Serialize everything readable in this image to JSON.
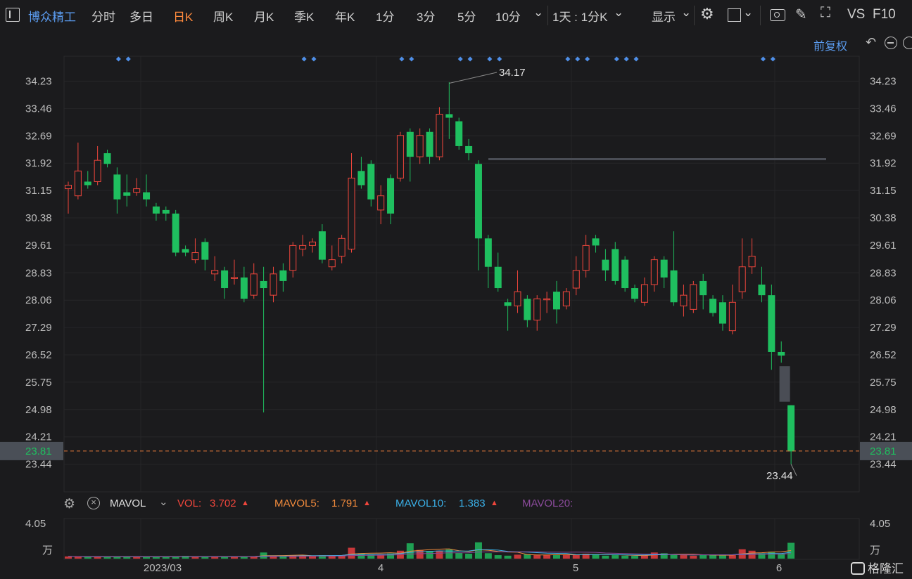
{
  "toolbar": {
    "stock_name": "博众精工",
    "tabs": [
      "分时",
      "多日",
      "日K",
      "周K",
      "月K",
      "季K",
      "年K",
      "1分",
      "3分",
      "5分",
      "10分"
    ],
    "active_tab": "日K",
    "range_select": "1天 : 1分K",
    "display_label": "显示",
    "vs_label": "VS",
    "f10_label": "F10"
  },
  "subbar": {
    "adjust_label": "前复权"
  },
  "price_axis": {
    "ticks": [
      "34.23",
      "33.46",
      "32.69",
      "31.92",
      "31.15",
      "30.38",
      "29.61",
      "28.83",
      "28.06",
      "27.29",
      "26.52",
      "25.75",
      "24.98",
      "24.21",
      "23.44"
    ],
    "current": "23.81"
  },
  "annotations": {
    "high": "34.17",
    "low": "23.44"
  },
  "date_axis": [
    "2023/03",
    "4",
    "5",
    "6"
  ],
  "indicator": {
    "name": "MAVOL",
    "vol_label": "VOL:",
    "vol_value": "3.702",
    "ma5_label": "MAVOL5:",
    "ma5_value": "1.791",
    "ma10_label": "MAVOL10:",
    "ma10_value": "1.383",
    "ma20_label": "MAVOL20:"
  },
  "volume_axis": {
    "top": "4.05",
    "unit": "万"
  },
  "watermark": "格隆汇",
  "colors": {
    "up": "#f0463c",
    "down": "#1fbf5f",
    "bg": "#1b1b1d",
    "accent": "#ff8a3d",
    "name": "#5b9cf0"
  },
  "chart_data": {
    "type": "candlestick",
    "ylim": [
      23.2,
      34.6
    ],
    "candles": [
      {
        "o": 31.2,
        "c": 31.3,
        "h": 31.4,
        "l": 30.5
      },
      {
        "o": 31.0,
        "c": 31.7,
        "h": 32.5,
        "l": 30.9
      },
      {
        "o": 31.4,
        "c": 31.3,
        "h": 31.7,
        "l": 31.2
      },
      {
        "o": 31.4,
        "c": 32.0,
        "h": 32.4,
        "l": 31.3
      },
      {
        "o": 32.2,
        "c": 31.9,
        "h": 32.3,
        "l": 31.8
      },
      {
        "o": 31.6,
        "c": 30.9,
        "h": 31.8,
        "l": 30.5
      },
      {
        "o": 31.1,
        "c": 31.0,
        "h": 31.6,
        "l": 30.7
      },
      {
        "o": 31.1,
        "c": 31.2,
        "h": 31.5,
        "l": 31.0
      },
      {
        "o": 31.1,
        "c": 30.9,
        "h": 31.6,
        "l": 30.7
      },
      {
        "o": 30.7,
        "c": 30.5,
        "h": 30.8,
        "l": 30.3
      },
      {
        "o": 30.6,
        "c": 30.5,
        "h": 30.7,
        "l": 30.3
      },
      {
        "o": 30.5,
        "c": 29.4,
        "h": 30.6,
        "l": 29.3
      },
      {
        "o": 29.5,
        "c": 29.4,
        "h": 29.6,
        "l": 29.3
      },
      {
        "o": 29.2,
        "c": 29.4,
        "h": 29.8,
        "l": 29.1
      },
      {
        "o": 29.7,
        "c": 29.2,
        "h": 29.8,
        "l": 28.9
      },
      {
        "o": 28.8,
        "c": 28.9,
        "h": 29.3,
        "l": 28.6
      },
      {
        "o": 28.9,
        "c": 28.4,
        "h": 29.0,
        "l": 28.1
      },
      {
        "o": 28.7,
        "c": 28.7,
        "h": 29.2,
        "l": 28.5
      },
      {
        "o": 28.7,
        "c": 28.1,
        "h": 29.0,
        "l": 28.0
      },
      {
        "o": 28.2,
        "c": 28.8,
        "h": 29.1,
        "l": 28.1
      },
      {
        "o": 28.6,
        "c": 28.4,
        "h": 29.0,
        "l": 24.9
      },
      {
        "o": 28.2,
        "c": 28.8,
        "h": 29.0,
        "l": 28.0
      },
      {
        "o": 28.9,
        "c": 28.6,
        "h": 29.1,
        "l": 28.3
      },
      {
        "o": 28.9,
        "c": 29.6,
        "h": 29.7,
        "l": 28.7
      },
      {
        "o": 29.5,
        "c": 29.6,
        "h": 29.9,
        "l": 29.3
      },
      {
        "o": 29.6,
        "c": 29.7,
        "h": 29.8,
        "l": 29.4
      },
      {
        "o": 30.0,
        "c": 29.2,
        "h": 30.2,
        "l": 29.1
      },
      {
        "o": 29.0,
        "c": 29.2,
        "h": 29.6,
        "l": 28.9
      },
      {
        "o": 29.3,
        "c": 29.8,
        "h": 29.9,
        "l": 29.1
      },
      {
        "o": 29.5,
        "c": 31.5,
        "h": 32.2,
        "l": 29.4
      },
      {
        "o": 31.7,
        "c": 31.3,
        "h": 32.1,
        "l": 31.2
      },
      {
        "o": 31.9,
        "c": 30.9,
        "h": 32.0,
        "l": 30.7
      },
      {
        "o": 30.6,
        "c": 31.0,
        "h": 31.3,
        "l": 30.2
      },
      {
        "o": 31.5,
        "c": 30.5,
        "h": 31.6,
        "l": 30.2
      },
      {
        "o": 31.5,
        "c": 32.7,
        "h": 32.8,
        "l": 31.4
      },
      {
        "o": 32.8,
        "c": 32.1,
        "h": 32.9,
        "l": 31.4
      },
      {
        "o": 32.1,
        "c": 32.7,
        "h": 32.9,
        "l": 31.9
      },
      {
        "o": 32.8,
        "c": 32.1,
        "h": 32.9,
        "l": 31.9
      },
      {
        "o": 32.1,
        "c": 33.3,
        "h": 33.5,
        "l": 32.0
      },
      {
        "o": 33.3,
        "c": 33.2,
        "h": 34.2,
        "l": 32.6
      },
      {
        "o": 33.1,
        "c": 32.4,
        "h": 33.2,
        "l": 32.3
      },
      {
        "o": 32.4,
        "c": 32.2,
        "h": 32.6,
        "l": 32.0
      },
      {
        "o": 31.9,
        "c": 29.8,
        "h": 32.0,
        "l": 28.9
      },
      {
        "o": 29.8,
        "c": 29.0,
        "h": 29.9,
        "l": 28.4
      },
      {
        "o": 29.0,
        "c": 28.4,
        "h": 29.4,
        "l": 28.3
      },
      {
        "o": 28.0,
        "c": 27.9,
        "h": 28.1,
        "l": 27.2
      },
      {
        "o": 27.9,
        "c": 28.3,
        "h": 28.9,
        "l": 27.7
      },
      {
        "o": 28.1,
        "c": 27.5,
        "h": 28.2,
        "l": 27.3
      },
      {
        "o": 27.5,
        "c": 28.1,
        "h": 28.2,
        "l": 27.2
      },
      {
        "o": 28.1,
        "c": 28.1,
        "h": 28.3,
        "l": 27.7
      },
      {
        "o": 28.3,
        "c": 27.8,
        "h": 28.6,
        "l": 27.4
      },
      {
        "o": 27.9,
        "c": 28.3,
        "h": 28.4,
        "l": 27.8
      },
      {
        "o": 28.4,
        "c": 28.9,
        "h": 29.3,
        "l": 28.2
      },
      {
        "o": 28.9,
        "c": 29.6,
        "h": 29.9,
        "l": 28.7
      },
      {
        "o": 29.8,
        "c": 29.6,
        "h": 29.9,
        "l": 29.4
      },
      {
        "o": 29.2,
        "c": 28.9,
        "h": 29.5,
        "l": 28.6
      },
      {
        "o": 29.5,
        "c": 28.6,
        "h": 29.7,
        "l": 28.5
      },
      {
        "o": 29.2,
        "c": 28.4,
        "h": 29.3,
        "l": 28.3
      },
      {
        "o": 28.4,
        "c": 28.1,
        "h": 28.5,
        "l": 28.0
      },
      {
        "o": 28.0,
        "c": 28.5,
        "h": 28.7,
        "l": 27.9
      },
      {
        "o": 28.5,
        "c": 29.2,
        "h": 29.3,
        "l": 28.3
      },
      {
        "o": 29.2,
        "c": 28.7,
        "h": 29.3,
        "l": 28.4
      },
      {
        "o": 28.9,
        "c": 28.0,
        "h": 30.0,
        "l": 27.9
      },
      {
        "o": 27.9,
        "c": 28.2,
        "h": 28.5,
        "l": 27.6
      },
      {
        "o": 27.8,
        "c": 28.5,
        "h": 28.6,
        "l": 27.7
      },
      {
        "o": 28.6,
        "c": 28.2,
        "h": 28.8,
        "l": 27.8
      },
      {
        "o": 28.1,
        "c": 27.7,
        "h": 28.2,
        "l": 27.6
      },
      {
        "o": 28.0,
        "c": 27.4,
        "h": 28.2,
        "l": 27.2
      },
      {
        "o": 27.2,
        "c": 28.0,
        "h": 28.5,
        "l": 27.1
      },
      {
        "o": 28.3,
        "c": 29.0,
        "h": 29.8,
        "l": 28.1
      },
      {
        "o": 29.0,
        "c": 29.3,
        "h": 29.8,
        "l": 28.8
      },
      {
        "o": 28.5,
        "c": 28.2,
        "h": 29.0,
        "l": 28.0
      },
      {
        "o": 28.2,
        "c": 26.6,
        "h": 28.5,
        "l": 26.1
      },
      {
        "o": 26.6,
        "c": 26.5,
        "h": 26.9,
        "l": 26.3
      },
      {
        "o": 25.1,
        "c": 23.8,
        "h": 25.1,
        "l": 23.44
      }
    ],
    "volume": [
      0.22,
      0.2,
      0.18,
      0.2,
      0.16,
      0.2,
      0.24,
      0.18,
      0.2,
      0.16,
      0.18,
      0.24,
      0.28,
      0.18,
      0.2,
      0.18,
      0.22,
      0.2,
      0.24,
      0.18,
      0.62,
      0.3,
      0.24,
      0.35,
      0.3,
      0.25,
      0.35,
      0.3,
      0.35,
      1.1,
      0.52,
      0.45,
      0.4,
      0.52,
      0.8,
      1.55,
      0.88,
      0.78,
      0.8,
      0.92,
      0.6,
      0.5,
      1.65,
      0.55,
      0.35,
      0.3,
      0.4,
      0.45,
      0.35,
      0.38,
      0.42,
      0.4,
      0.42,
      0.5,
      0.4,
      0.3,
      0.35,
      0.3,
      0.28,
      0.32,
      0.62,
      0.55,
      0.4,
      0.35,
      0.3,
      0.35,
      0.4,
      0.35,
      0.35,
      0.95,
      0.8,
      0.55,
      0.7,
      0.45,
      1.6
    ]
  }
}
